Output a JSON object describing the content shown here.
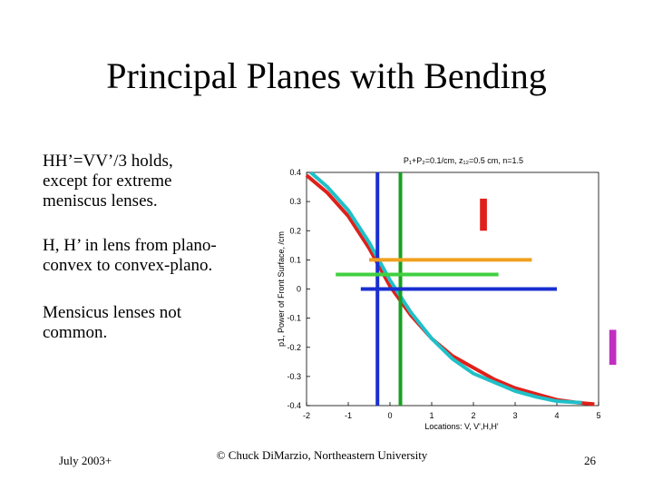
{
  "slide": {
    "title": "Principal Planes with Bending",
    "paragraphs": [
      [
        "HH’=VV’/3 holds,",
        "except for extreme",
        "meniscus lenses."
      ],
      [
        "H, H’ in lens from plano-",
        "convex to convex-plano."
      ],
      [
        "Mensicus lenses not",
        "common."
      ]
    ],
    "footer_left": "July 2003+",
    "footer_center": "© Chuck DiMarzio, Northeastern University",
    "page_number": "26"
  },
  "chart_data": {
    "type": "line",
    "title": "P₁+P₂=0.1/cm, z₁₂=0.5 cm, n=1.5",
    "x_label": "Locations: V, V',H,H'",
    "y_label": "p1, Power of Front Surface, /cm",
    "xlim": [
      -2,
      5
    ],
    "ylim": [
      -0.4,
      0.4
    ],
    "xticks": [
      -2,
      -1,
      0,
      1,
      2,
      3,
      4,
      5
    ],
    "yticks": [
      0.4,
      0.3,
      0.2,
      0.1,
      0,
      -0.1,
      -0.2,
      -0.3,
      -0.4
    ],
    "series": [
      {
        "color": "#e0201a",
        "x": [
          -2,
          -1.5,
          -1,
          -0.5,
          0,
          0.5,
          1,
          1.5,
          2,
          2.5,
          3,
          3.5,
          4,
          4.5,
          4.9
        ],
        "values": [
          0.39,
          0.33,
          0.25,
          0.14,
          0.01,
          -0.09,
          -0.17,
          -0.23,
          -0.27,
          -0.31,
          -0.34,
          -0.36,
          -0.38,
          -0.39,
          -0.395
        ]
      },
      {
        "color": "#20c0c8",
        "x": [
          -1.9,
          -1.5,
          -1,
          -0.5,
          0,
          0.5,
          1,
          1.5,
          2,
          2.5,
          3,
          3.5,
          4,
          4.6
        ],
        "values": [
          0.4,
          0.35,
          0.27,
          0.16,
          0.03,
          -0.08,
          -0.17,
          -0.24,
          -0.29,
          -0.32,
          -0.35,
          -0.37,
          -0.385,
          -0.39
        ]
      },
      {
        "color": "#1a2fd0",
        "x": [
          -0.3,
          -0.3
        ],
        "values": [
          0.4,
          -0.4
        ]
      },
      {
        "color": "#17a020",
        "x": [
          0.25,
          0.25
        ],
        "values": [
          0.4,
          -0.4
        ]
      },
      {
        "color": "#f0a020",
        "x": [
          -0.5,
          3.4
        ],
        "values": [
          0.1,
          0.1
        ]
      },
      {
        "color": "#40d040",
        "x": [
          -1.3,
          2.6
        ],
        "values": [
          0.05,
          0.05
        ]
      },
      {
        "color": "#1a2fd0",
        "x": [
          -0.7,
          4.0
        ],
        "values": [
          0.0,
          0.0
        ]
      },
      {
        "color": "#e0201a",
        "x": [
          2.2,
          2.2
        ],
        "values": [
          0.31,
          0.2
        ]
      },
      {
        "color": "#e0201a",
        "x": [
          2.28,
          2.28
        ],
        "values": [
          0.31,
          0.2
        ]
      },
      {
        "color": "#c030c0",
        "x": [
          5.3,
          5.3
        ],
        "values": [
          -0.14,
          -0.26
        ]
      },
      {
        "color": "#c030c0",
        "x": [
          5.38,
          5.38
        ],
        "values": [
          -0.14,
          -0.26
        ]
      }
    ]
  }
}
